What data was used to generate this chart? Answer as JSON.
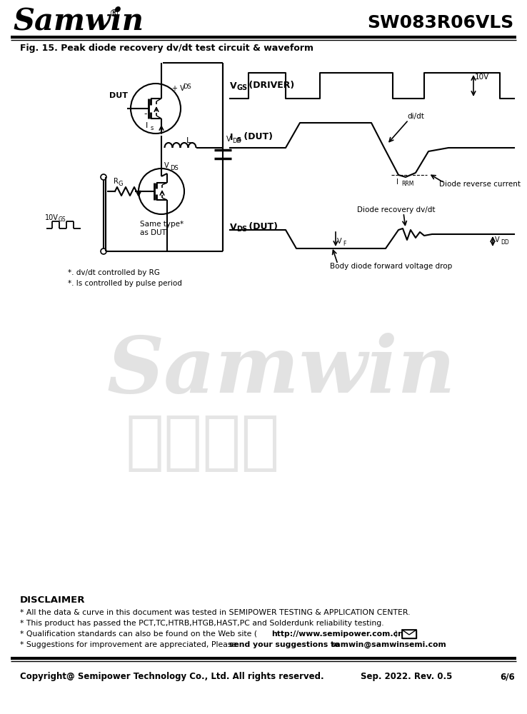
{
  "title_company": "Samwin",
  "title_part": "SW083R06VLS",
  "fig_title": "Fig. 15. Peak diode recovery dv/dt test circuit & waveform",
  "disclaimer_title": "DISCLAIMER",
  "disc1": "* All the data & curve in this document was tested in SEMIPOWER TESTING & APPLICATION CENTER.",
  "disc2": "* This product has passed the PCT,TC,HTRB,HTGB,HAST,PC and Solderdunk reliability testing.",
  "disc3a": "* Qualification standards can also be found on the Web site (",
  "disc3b": "http://www.semipower.com.cn",
  "disc3c": ")",
  "disc4a": "* Suggestions for improvement are appreciated, Please ",
  "disc4b": "send your suggestions to ",
  "disc4c": "samwin@samwinsemi.com",
  "footer_left": "Copyright@ Semipower Technology Co., Ltd. All rights reserved.",
  "footer_center": "Sep. 2022. Rev. 0.5",
  "footer_right": "6/6",
  "watermark1": "Samwin",
  "watermark2": "内部保密",
  "bg_color": "#ffffff"
}
